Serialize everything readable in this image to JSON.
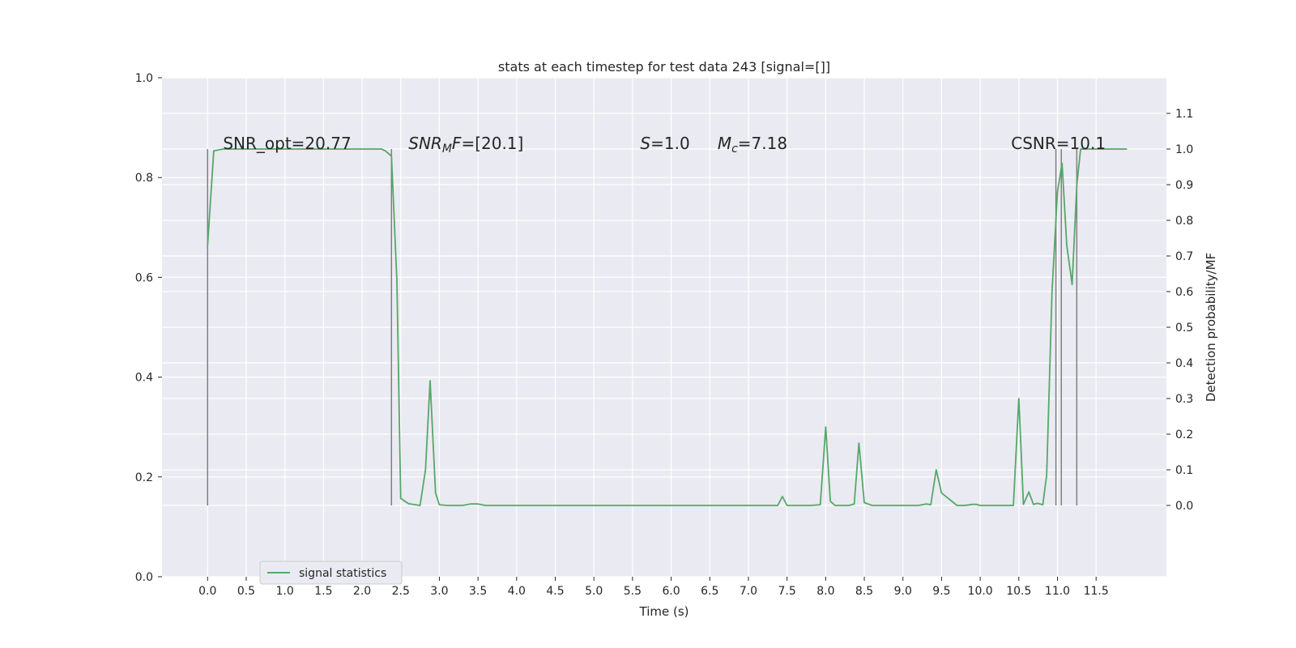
{
  "chart_data": {
    "type": "line",
    "title": "stats at each timestep for test data 243 [signal=[]]",
    "xlabel": "Time (s)",
    "ylabel_left": "",
    "ylabel_right": "Detection probability/MF",
    "xlim": [
      -0.59,
      12.41
    ],
    "ylim_left": [
      0,
      1.0
    ],
    "ylim_right": [
      -0.2,
      1.2
    ],
    "x_ticks": [
      0.0,
      0.5,
      1.0,
      1.5,
      2.0,
      2.5,
      3.0,
      3.5,
      4.0,
      4.5,
      5.0,
      5.5,
      6.0,
      6.5,
      7.0,
      7.5,
      8.0,
      8.5,
      9.0,
      9.5,
      10.0,
      10.5,
      11.0,
      11.5
    ],
    "x_tick_labels": [
      "0.0",
      "0.5",
      "1.0",
      "1.5",
      "2.0",
      "2.5",
      "3.0",
      "3.5",
      "4.0",
      "4.5",
      "5.0",
      "5.5",
      "6.0",
      "6.5",
      "7.0",
      "7.5",
      "8.0",
      "8.5",
      "9.0",
      "9.5",
      "10.0",
      "10.5",
      "11.0",
      "11.5"
    ],
    "y_left_ticks": [
      0.0,
      0.2,
      0.4,
      0.6,
      0.8,
      1.0
    ],
    "y_left_tick_labels": [
      "0.0",
      "0.2",
      "0.4",
      "0.6",
      "0.8",
      "1.0"
    ],
    "y_right_ticks": [
      0.0,
      0.1,
      0.2,
      0.3,
      0.4,
      0.5,
      0.6,
      0.7,
      0.8,
      0.9,
      1.0,
      1.1
    ],
    "y_right_tick_labels": [
      "0.0",
      "0.1",
      "0.2",
      "0.3",
      "0.4",
      "0.5",
      "0.6",
      "0.7",
      "0.8",
      "0.9",
      "1.0",
      "1.1"
    ],
    "grid": true,
    "legend_position": "lower-left",
    "series": [
      {
        "name": "signal statistics",
        "color": "#55a868",
        "axis": "right",
        "x": [
          0.0,
          0.08,
          0.2,
          0.5,
          1.0,
          1.5,
          2.0,
          2.25,
          2.3,
          2.38,
          2.45,
          2.5,
          2.6,
          2.75,
          2.82,
          2.88,
          2.95,
          3.0,
          3.1,
          3.3,
          3.4,
          3.5,
          3.6,
          4.0,
          5.0,
          6.0,
          7.0,
          7.38,
          7.44,
          7.5,
          7.6,
          7.7,
          7.8,
          7.93,
          8.0,
          8.06,
          8.12,
          8.3,
          8.37,
          8.43,
          8.5,
          8.6,
          9.0,
          9.2,
          9.3,
          9.36,
          9.43,
          9.5,
          9.7,
          9.8,
          9.9,
          9.95,
          10.0,
          10.3,
          10.43,
          10.5,
          10.56,
          10.63,
          10.69,
          10.74,
          10.81,
          10.86,
          10.93,
          11.0,
          11.06,
          11.12,
          11.19,
          11.25,
          11.3,
          11.5,
          11.9
        ],
        "y": [
          0.73,
          0.995,
          1.0,
          1.0,
          1.0,
          1.0,
          1.0,
          1.0,
          0.995,
          0.98,
          0.63,
          0.02,
          0.005,
          0.0,
          0.1,
          0.35,
          0.035,
          0.002,
          0.0,
          0.0,
          0.004,
          0.004,
          0.0,
          0.0,
          0.0,
          0.0,
          0.0,
          0.0,
          0.025,
          0.0,
          0.0,
          0.0,
          0.0,
          0.002,
          0.22,
          0.012,
          0.0,
          0.0,
          0.004,
          0.175,
          0.008,
          0.0,
          0.0,
          0.0,
          0.004,
          0.002,
          0.1,
          0.035,
          0.0,
          0.0,
          0.003,
          0.003,
          0.0,
          0.0,
          0.0,
          0.3,
          0.003,
          0.038,
          0.003,
          0.006,
          0.002,
          0.085,
          0.6,
          0.88,
          0.96,
          0.73,
          0.62,
          0.9,
          1.0,
          1.0,
          1.0
        ]
      }
    ],
    "vertical_lines": {
      "color": "#808080",
      "x": [
        0.0,
        2.38,
        10.98,
        11.05,
        11.25
      ],
      "y_range": [
        0.0,
        1.0
      ]
    },
    "annotations": [
      {
        "id": "snr-opt",
        "parts": [
          {
            "t": "SNR_opt=20.77"
          }
        ],
        "x": 0.2,
        "y": 1.0
      },
      {
        "id": "snr-mf",
        "parts": [
          {
            "t": "SNR",
            "style": "italic"
          },
          {
            "t": "M",
            "style": "italic-sub"
          },
          {
            "t": "F",
            "style": "italic"
          },
          {
            "t": "=[20.1]"
          }
        ],
        "x": 2.6,
        "y": 1.0
      },
      {
        "id": "s-val",
        "parts": [
          {
            "t": "S",
            "style": "italic"
          },
          {
            "t": "=1.0"
          }
        ],
        "x": 5.6,
        "y": 1.0
      },
      {
        "id": "mc-val",
        "parts": [
          {
            "t": "M",
            "style": "italic"
          },
          {
            "t": "c",
            "style": "italic-sub"
          },
          {
            "t": "=7.18"
          }
        ],
        "x": 6.6,
        "y": 1.0
      },
      {
        "id": "csnr",
        "parts": [
          {
            "t": "CSNR=10.1"
          }
        ],
        "x": 10.4,
        "y": 1.0
      }
    ],
    "colors": {
      "plot_background": "#eaeaf2",
      "grid": "#ffffff",
      "text": "#262626",
      "line": "#55a868",
      "vlines": "#808080"
    }
  }
}
